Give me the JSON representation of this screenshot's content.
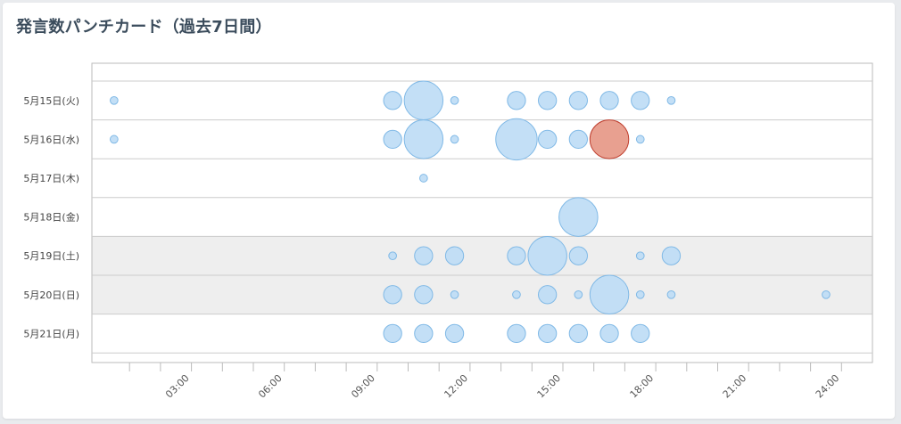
{
  "title": "発言数パンチカード（過去7日間）",
  "colors": {
    "bubble_fill": "#bcdcf5",
    "bubble_stroke": "#80b9e6",
    "highlight_fill": "#e8a090",
    "highlight_stroke": "#c04030",
    "shaded_row": "#eeeeee",
    "grid": "#cccccc"
  },
  "chart_data": {
    "type": "scatter",
    "subtype": "punchcard",
    "title": "発言数パンチカード（過去7日間）",
    "xlabel": "",
    "ylabel": "",
    "xlim": [
      0,
      24
    ],
    "x_ticks": [
      "03:00",
      "06:00",
      "09:00",
      "12:00",
      "15:00",
      "18:00",
      "21:00",
      "24:00"
    ],
    "categories": [
      "5月15日(火)",
      "5月16日(水)",
      "5月17日(木)",
      "5月18日(金)",
      "5月19日(土)",
      "5月20日(日)",
      "5月21日(月)"
    ],
    "shaded_rows": [
      "5月19日(土)",
      "5月20日(日)"
    ],
    "grid": true,
    "points": [
      {
        "day": "5月15日(火)",
        "hour": 0.5,
        "size": 3
      },
      {
        "day": "5月15日(火)",
        "hour": 9.5,
        "size": 7
      },
      {
        "day": "5月15日(火)",
        "hour": 10.5,
        "size": 15
      },
      {
        "day": "5月15日(火)",
        "hour": 11.5,
        "size": 3
      },
      {
        "day": "5月15日(火)",
        "hour": 13.5,
        "size": 7
      },
      {
        "day": "5月15日(火)",
        "hour": 14.5,
        "size": 7
      },
      {
        "day": "5月15日(火)",
        "hour": 15.5,
        "size": 7
      },
      {
        "day": "5月15日(火)",
        "hour": 16.5,
        "size": 7
      },
      {
        "day": "5月15日(火)",
        "hour": 17.5,
        "size": 7
      },
      {
        "day": "5月15日(火)",
        "hour": 18.5,
        "size": 3
      },
      {
        "day": "5月16日(水)",
        "hour": 0.5,
        "size": 3
      },
      {
        "day": "5月16日(水)",
        "hour": 9.5,
        "size": 7
      },
      {
        "day": "5月16日(水)",
        "hour": 10.5,
        "size": 15
      },
      {
        "day": "5月16日(水)",
        "hour": 11.5,
        "size": 3
      },
      {
        "day": "5月16日(水)",
        "hour": 13.5,
        "size": 16
      },
      {
        "day": "5月16日(水)",
        "hour": 14.5,
        "size": 7
      },
      {
        "day": "5月16日(水)",
        "hour": 15.5,
        "size": 7
      },
      {
        "day": "5月16日(水)",
        "hour": 16.5,
        "size": 15,
        "highlight": true
      },
      {
        "day": "5月16日(水)",
        "hour": 17.5,
        "size": 3
      },
      {
        "day": "5月17日(木)",
        "hour": 10.5,
        "size": 3
      },
      {
        "day": "5月18日(金)",
        "hour": 15.5,
        "size": 15
      },
      {
        "day": "5月19日(土)",
        "hour": 9.5,
        "size": 3
      },
      {
        "day": "5月19日(土)",
        "hour": 10.5,
        "size": 7
      },
      {
        "day": "5月19日(土)",
        "hour": 11.5,
        "size": 7
      },
      {
        "day": "5月19日(土)",
        "hour": 13.5,
        "size": 7
      },
      {
        "day": "5月19日(土)",
        "hour": 14.5,
        "size": 15
      },
      {
        "day": "5月19日(土)",
        "hour": 15.5,
        "size": 7
      },
      {
        "day": "5月19日(土)",
        "hour": 17.5,
        "size": 3
      },
      {
        "day": "5月19日(土)",
        "hour": 18.5,
        "size": 7
      },
      {
        "day": "5月20日(日)",
        "hour": 9.5,
        "size": 7
      },
      {
        "day": "5月20日(日)",
        "hour": 10.5,
        "size": 7
      },
      {
        "day": "5月20日(日)",
        "hour": 11.5,
        "size": 3
      },
      {
        "day": "5月20日(日)",
        "hour": 13.5,
        "size": 3
      },
      {
        "day": "5月20日(日)",
        "hour": 14.5,
        "size": 7
      },
      {
        "day": "5月20日(日)",
        "hour": 15.5,
        "size": 3
      },
      {
        "day": "5月20日(日)",
        "hour": 16.5,
        "size": 15
      },
      {
        "day": "5月20日(日)",
        "hour": 17.5,
        "size": 3
      },
      {
        "day": "5月20日(日)",
        "hour": 18.5,
        "size": 3
      },
      {
        "day": "5月20日(日)",
        "hour": 23.5,
        "size": 3
      },
      {
        "day": "5月21日(月)",
        "hour": 9.5,
        "size": 7
      },
      {
        "day": "5月21日(月)",
        "hour": 10.5,
        "size": 7
      },
      {
        "day": "5月21日(月)",
        "hour": 11.5,
        "size": 7
      },
      {
        "day": "5月21日(月)",
        "hour": 13.5,
        "size": 7
      },
      {
        "day": "5月21日(月)",
        "hour": 14.5,
        "size": 7
      },
      {
        "day": "5月21日(月)",
        "hour": 15.5,
        "size": 7
      },
      {
        "day": "5月21日(月)",
        "hour": 16.5,
        "size": 7
      },
      {
        "day": "5月21日(月)",
        "hour": 17.5,
        "size": 7
      }
    ]
  }
}
